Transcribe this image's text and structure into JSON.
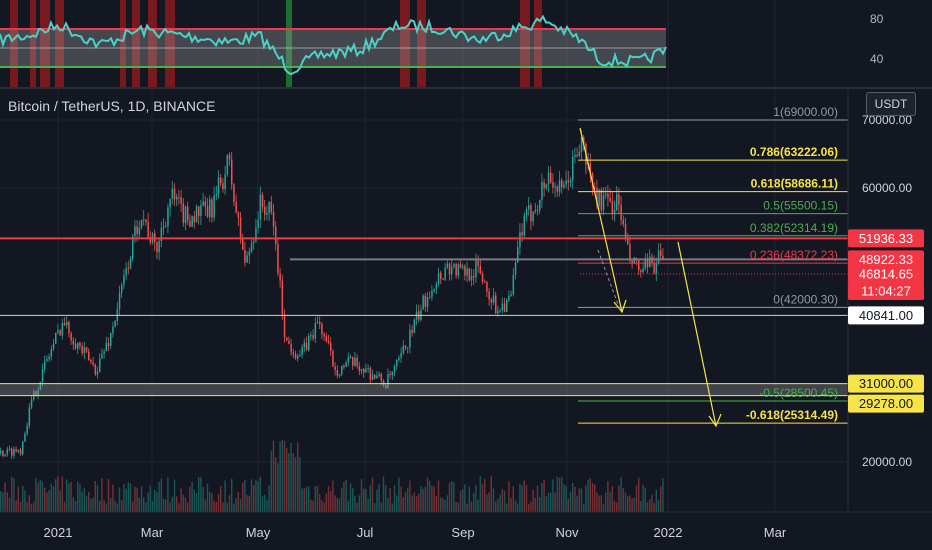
{
  "chart_data": {
    "type": "candlestick",
    "title": "Bitcoin / TetherUS, 1D, BINANCE",
    "currency": "USDT",
    "x_ticks": [
      "2021",
      "Mar",
      "May",
      "Jul",
      "Sep",
      "Nov",
      "2022",
      "Mar"
    ],
    "y_ticks": [
      "70000.00",
      "60000.00",
      "20000.00"
    ],
    "oscillator_ticks": [
      "80",
      "40"
    ],
    "oscillator_band": {
      "upper": 70,
      "lower": 30
    },
    "fib_levels": [
      {
        "label": "1(69000.00)",
        "value": 69000,
        "color": "#9598a1"
      },
      {
        "label": "0.786(63222.06)",
        "value": 63222.06,
        "color": "#f7e34a"
      },
      {
        "label": "0.618(58686.11)",
        "value": 58686.11,
        "color": "#f7e34a"
      },
      {
        "label": "0.5(55500.15)",
        "value": 55500.15,
        "color": "#4caf50"
      },
      {
        "label": "0.382(52314.19)",
        "value": 52314.19,
        "color": "#4caf50"
      },
      {
        "label": "0.236(48372.23)",
        "value": 48372.23,
        "color": "#f23645"
      },
      {
        "label": "0(42000.30)",
        "value": 42000.3,
        "color": "#9598a1"
      },
      {
        "label": "-0.5(28500.45)",
        "value": 28500.45,
        "color": "#4caf50"
      },
      {
        "label": "-0.618(25314.49)",
        "value": 25314.49,
        "color": "#f7e34a"
      }
    ],
    "price_tags": [
      {
        "text": "51936.33",
        "bg": "#f23645",
        "fg": "#ffffff"
      },
      {
        "text": "48922.33",
        "bg": "#f23645",
        "fg": "#ffffff"
      },
      {
        "text": "46814.65",
        "bg": "#f23645",
        "fg": "#ffffff"
      },
      {
        "text": "11:04:27",
        "bg": "#f23645",
        "fg": "#ffffff"
      },
      {
        "text": "40841.00",
        "bg": "#ffffff",
        "fg": "#131722"
      },
      {
        "text": "31000.00",
        "bg": "#f7e34a",
        "fg": "#131722"
      },
      {
        "text": "29278.00",
        "bg": "#f7e34a",
        "fg": "#131722"
      }
    ],
    "colors": {
      "up": "#26a69a",
      "down": "#ef5350",
      "rsi": "#4dd0c8",
      "band_red": "#f23645",
      "band_green": "#4caf50"
    }
  }
}
